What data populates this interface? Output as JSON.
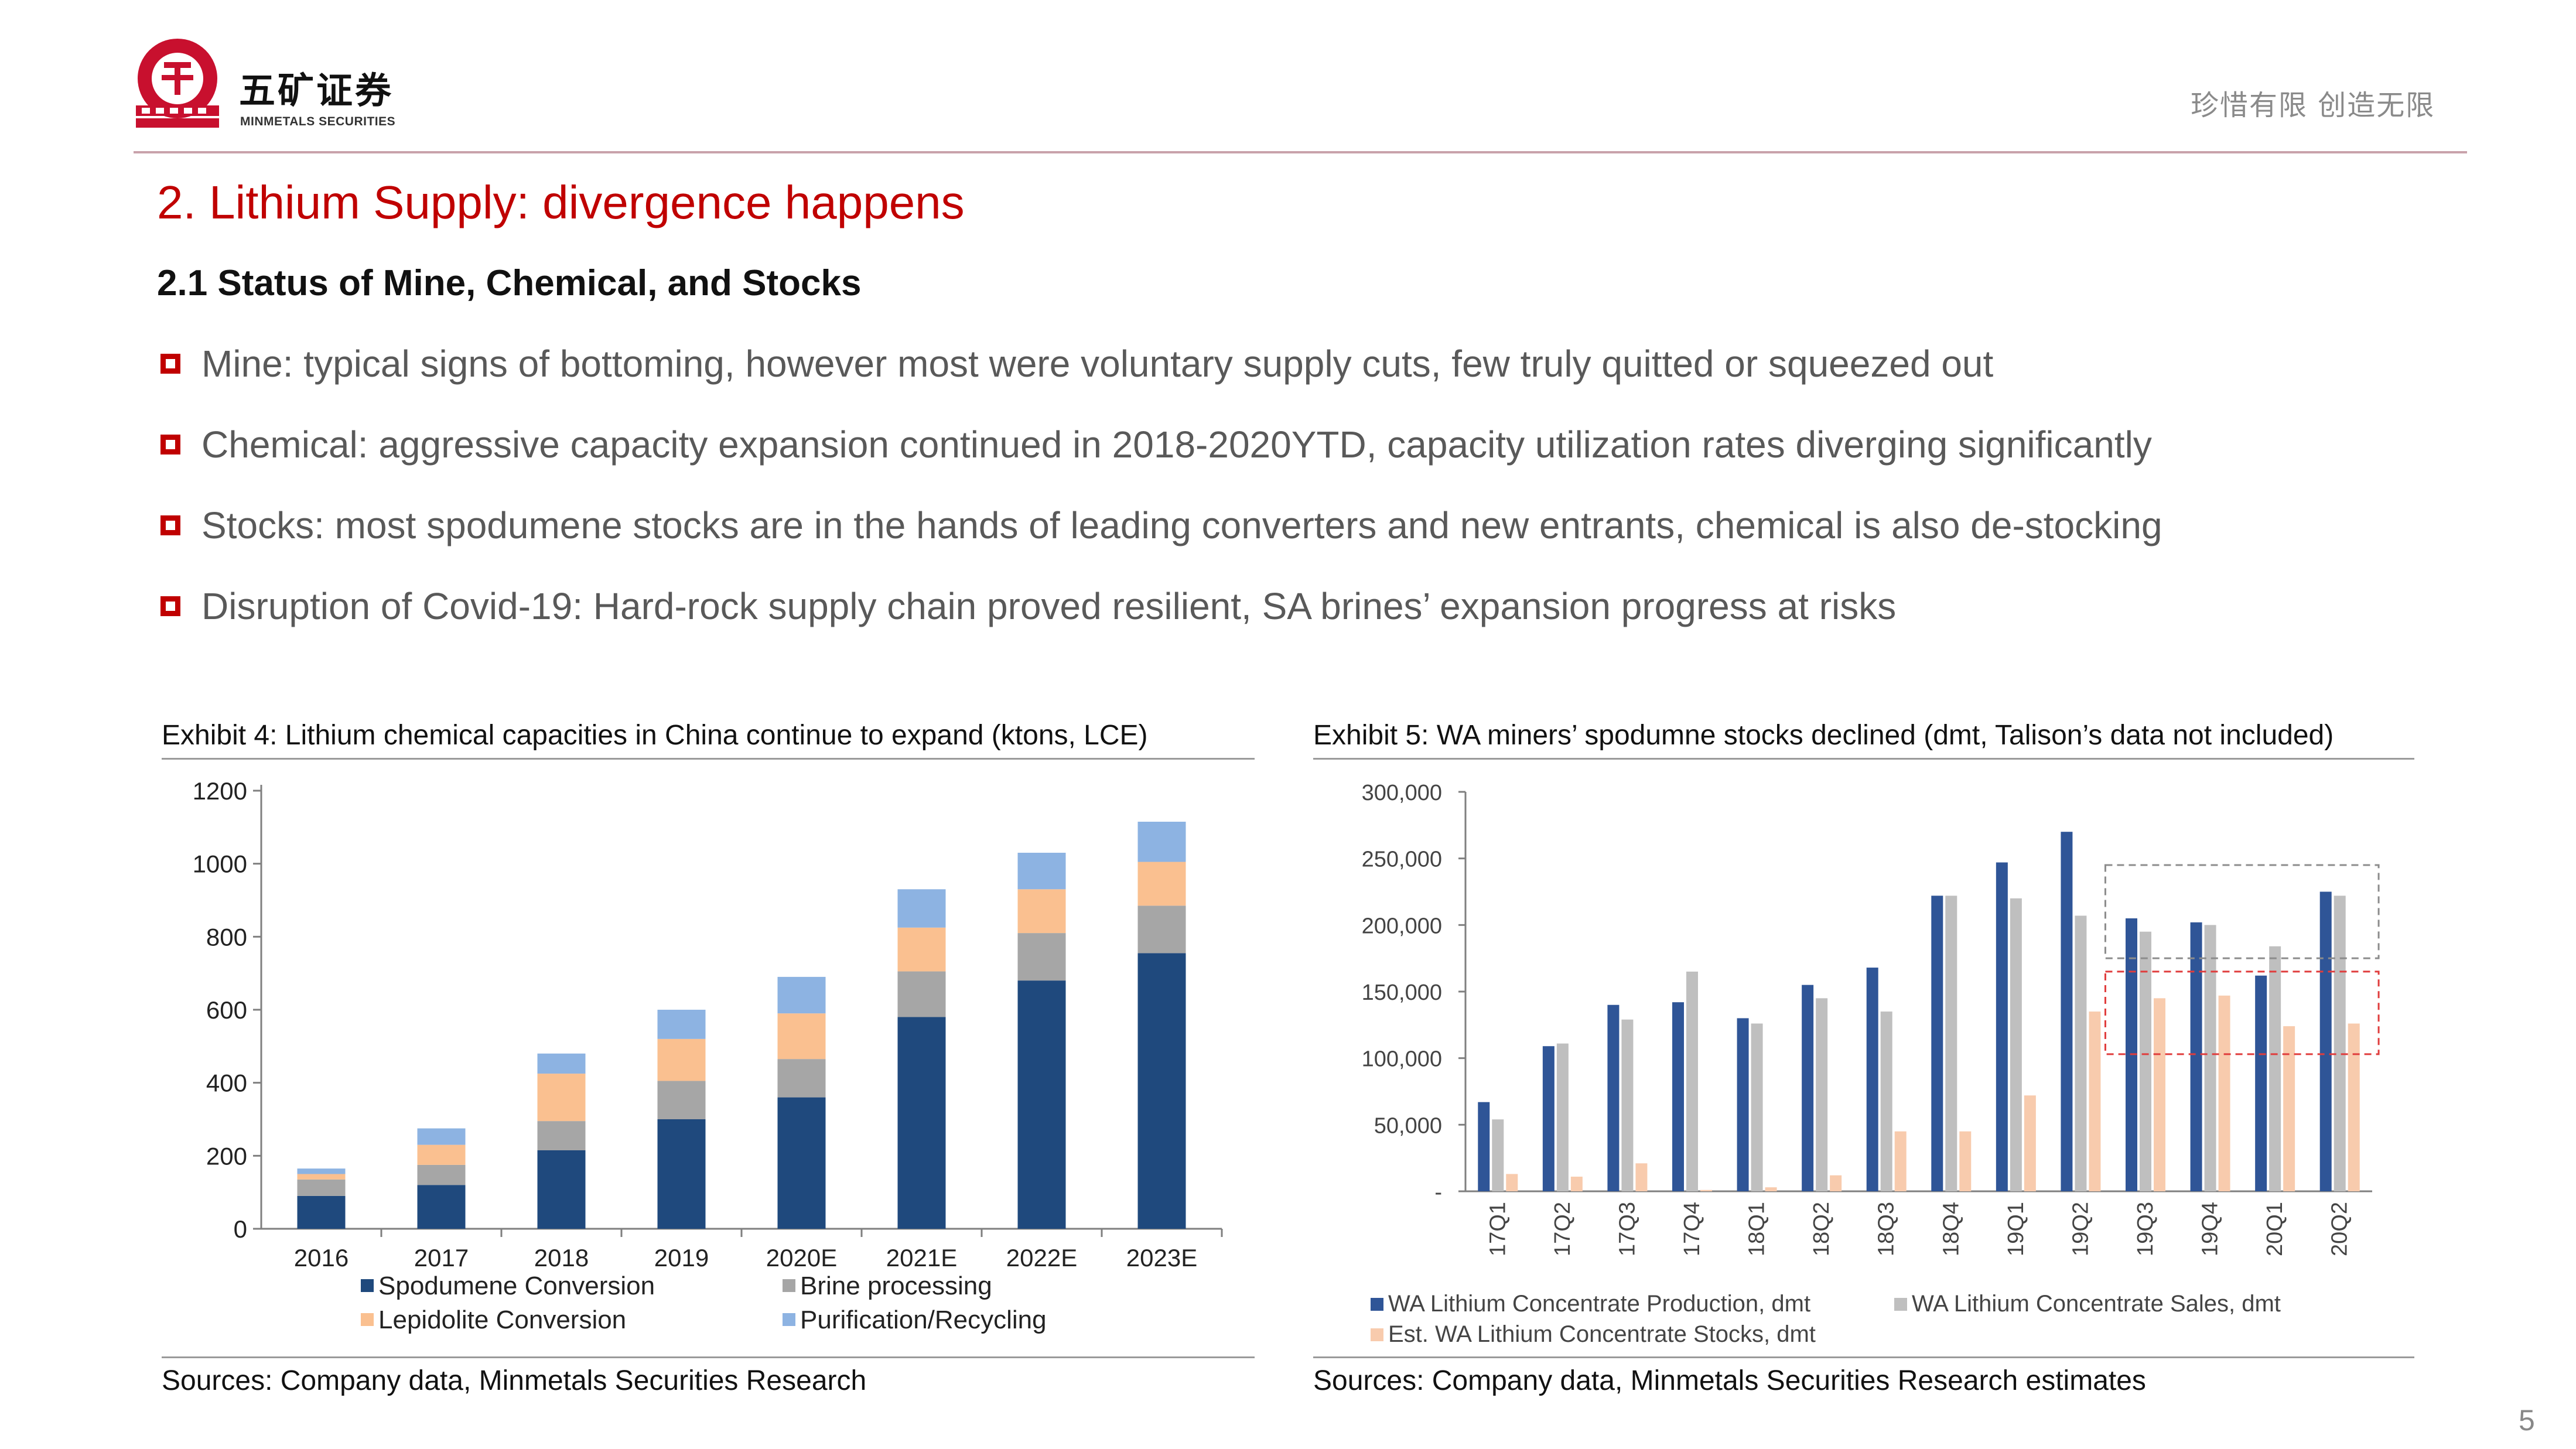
{
  "header": {
    "logo_cn": "五矿证券",
    "logo_en": "MINMETALS SECURITIES",
    "slogan": "珍惜有限  创造无限",
    "colors": {
      "accent": "#c00000",
      "rule": "#c9a2ab"
    }
  },
  "section_title": "2.  Lithium Supply: divergence happens",
  "subsection_title": "2.1 Status of Mine, Chemical, and Stocks",
  "bullets": [
    "Mine: typical signs of bottoming, however most were voluntary supply cuts, few truly quitted or squeezed out",
    "Chemical: aggressive capacity expansion continued in 2018-2020YTD, capacity utilization rates diverging significantly",
    "Stocks: most spodumene stocks are in the hands of leading converters and new entrants, chemical is also de-stocking",
    "Disruption of Covid-19: Hard-rock supply chain proved resilient, SA brines’ expansion progress at risks"
  ],
  "exhibit4": {
    "title": "Exhibit 4: Lithium chemical capacities in China continue to expand (ktons, LCE)",
    "source": "Sources: Company data, Minmetals Securities Research"
  },
  "exhibit5": {
    "title": "Exhibit 5: WA miners’ spodumne stocks declined (dmt, Talison’s data not included)",
    "source": "Sources: Company data, Minmetals Securities Research estimates"
  },
  "page_number": "5",
  "chart_data": [
    {
      "type": "bar",
      "stacked": true,
      "title": "Exhibit 4: Lithium chemical capacities in China continue to expand (ktons, LCE)",
      "categories": [
        "2016",
        "2017",
        "2018",
        "2019",
        "2020E",
        "2021E",
        "2022E",
        "2023E"
      ],
      "ylim": [
        0,
        1200
      ],
      "yticks": [
        "0",
        "200",
        "400",
        "600",
        "800",
        "1000",
        "1200"
      ],
      "grid": false,
      "legend_position": "bottom",
      "series": [
        {
          "name": "Spodumene Conversion",
          "color": "#1f497d",
          "values": [
            90,
            120,
            215,
            300,
            360,
            580,
            680,
            755
          ]
        },
        {
          "name": "Brine processing",
          "color": "#a6a6a6",
          "values": [
            45,
            55,
            80,
            105,
            105,
            125,
            130,
            130
          ]
        },
        {
          "name": "Lepidolite Conversion",
          "color": "#fac090",
          "values": [
            15,
            55,
            130,
            115,
            125,
            120,
            120,
            120
          ]
        },
        {
          "name": "Purification/Recycling",
          "color": "#8db3e2",
          "values": [
            15,
            45,
            55,
            80,
            100,
            105,
            100,
            110
          ]
        }
      ]
    },
    {
      "type": "bar",
      "stacked": false,
      "title": "Exhibit 5: WA miners’ spodumne stocks declined (dmt, Talison’s data not included)",
      "categories": [
        "17Q1",
        "17Q2",
        "17Q3",
        "17Q4",
        "18Q1",
        "18Q2",
        "18Q3",
        "18Q4",
        "19Q1",
        "19Q2",
        "19Q3",
        "19Q4",
        "20Q1",
        "20Q2"
      ],
      "ylim": [
        0,
        300000
      ],
      "yticks": [
        "-",
        "50,000",
        "100,000",
        "150,000",
        "200,000",
        "250,000",
        "300,000"
      ],
      "grid": false,
      "legend_position": "bottom",
      "series": [
        {
          "name": "WA Lithium Concentrate Production, dmt",
          "color": "#2f5597",
          "values": [
            67000,
            109000,
            140000,
            142000,
            130000,
            155000,
            168000,
            222000,
            247000,
            270000,
            205000,
            202000,
            162000,
            225000
          ]
        },
        {
          "name": "WA Lithium Concentrate Sales, dmt",
          "color": "#bfbfbf",
          "values": [
            54000,
            111000,
            129000,
            165000,
            126000,
            145000,
            135000,
            222000,
            220000,
            207000,
            195000,
            200000,
            184000,
            222000
          ]
        },
        {
          "name": "Est. WA Lithium Concentrate Stocks, dmt",
          "color": "#f8cbad",
          "values": [
            13000,
            11000,
            21000,
            1000,
            3000,
            12000,
            45000,
            45000,
            72000,
            135000,
            145000,
            147000,
            124000,
            126000
          ]
        }
      ],
      "annotations": [
        {
          "kind": "dashed-box",
          "color": "#8c8c8c",
          "categories": [
            "19Q3",
            "20Q2"
          ],
          "y_range": [
            175000,
            245000
          ]
        },
        {
          "kind": "dashed-box",
          "color": "#e03c3c",
          "categories": [
            "19Q3",
            "20Q2"
          ],
          "y_range": [
            103000,
            165000
          ]
        }
      ]
    }
  ]
}
